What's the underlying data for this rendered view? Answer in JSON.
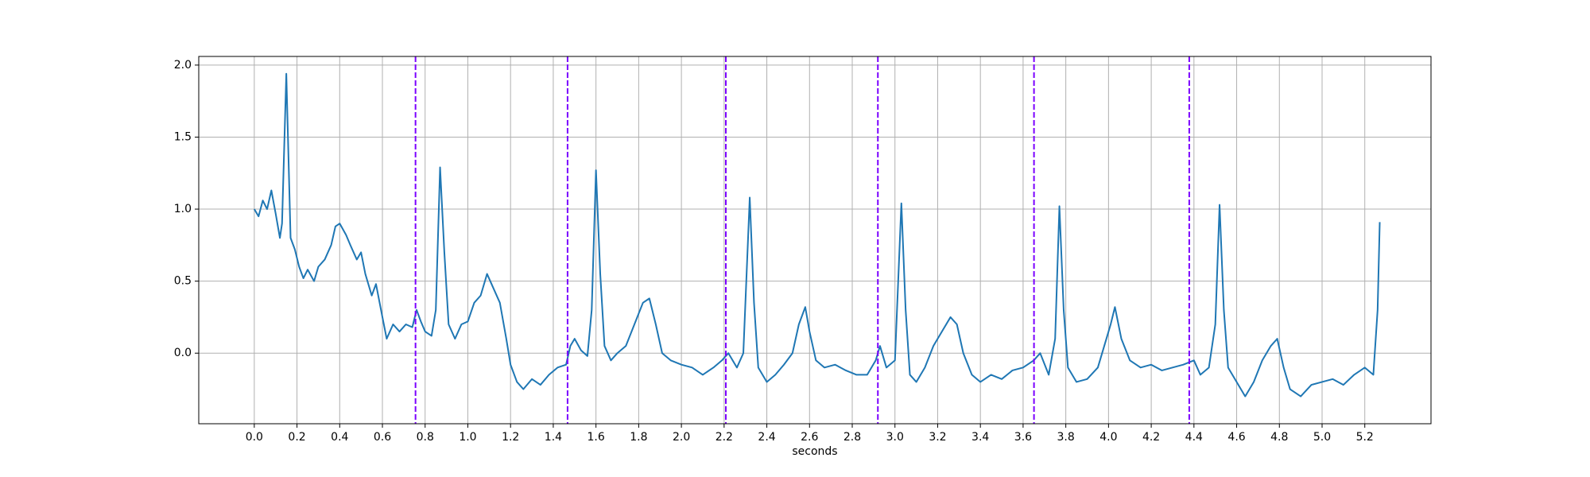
{
  "chart_data": {
    "type": "line",
    "xlabel": "seconds",
    "x": [
      0.0,
      0.02,
      0.04,
      0.06,
      0.08,
      0.1,
      0.12,
      0.13,
      0.15,
      0.17,
      0.19,
      0.21,
      0.23,
      0.25,
      0.28,
      0.3,
      0.33,
      0.36,
      0.38,
      0.4,
      0.43,
      0.45,
      0.48,
      0.5,
      0.52,
      0.55,
      0.57,
      0.6,
      0.62,
      0.65,
      0.68,
      0.71,
      0.74,
      0.76,
      0.78,
      0.8,
      0.83,
      0.85,
      0.87,
      0.89,
      0.91,
      0.94,
      0.97,
      1.0,
      1.03,
      1.06,
      1.09,
      1.12,
      1.15,
      1.18,
      1.2,
      1.23,
      1.26,
      1.3,
      1.34,
      1.38,
      1.42,
      1.46,
      1.48,
      1.5,
      1.53,
      1.56,
      1.58,
      1.6,
      1.62,
      1.64,
      1.67,
      1.7,
      1.74,
      1.78,
      1.82,
      1.85,
      1.88,
      1.91,
      1.95,
      2.0,
      2.05,
      2.1,
      2.15,
      2.19,
      2.22,
      2.26,
      2.29,
      2.32,
      2.34,
      2.36,
      2.4,
      2.44,
      2.48,
      2.52,
      2.55,
      2.58,
      2.6,
      2.63,
      2.67,
      2.72,
      2.77,
      2.82,
      2.87,
      2.91,
      2.93,
      2.96,
      3.0,
      3.03,
      3.05,
      3.07,
      3.1,
      3.14,
      3.18,
      3.22,
      3.26,
      3.29,
      3.32,
      3.36,
      3.4,
      3.45,
      3.5,
      3.55,
      3.6,
      3.65,
      3.68,
      3.72,
      3.75,
      3.77,
      3.79,
      3.81,
      3.85,
      3.9,
      3.95,
      3.98,
      4.01,
      4.03,
      4.06,
      4.1,
      4.15,
      4.2,
      4.25,
      4.3,
      4.35,
      4.4,
      4.43,
      4.47,
      4.5,
      4.52,
      4.54,
      4.56,
      4.6,
      4.64,
      4.68,
      4.72,
      4.76,
      4.79,
      4.82,
      4.85,
      4.9,
      4.95,
      5.0,
      5.05,
      5.1,
      5.15,
      5.2,
      5.24,
      5.26,
      5.27
    ],
    "series": [
      {
        "color": "#1f77b4",
        "values": [
          1.0,
          0.95,
          1.06,
          1.0,
          1.13,
          0.97,
          0.8,
          0.9,
          1.94,
          0.8,
          0.72,
          0.6,
          0.52,
          0.58,
          0.5,
          0.6,
          0.65,
          0.75,
          0.88,
          0.9,
          0.82,
          0.75,
          0.65,
          0.7,
          0.55,
          0.4,
          0.48,
          0.25,
          0.1,
          0.2,
          0.15,
          0.2,
          0.18,
          0.3,
          0.22,
          0.15,
          0.12,
          0.3,
          1.29,
          0.7,
          0.2,
          0.1,
          0.2,
          0.22,
          0.35,
          0.4,
          0.55,
          0.45,
          0.35,
          0.1,
          -0.08,
          -0.2,
          -0.25,
          -0.18,
          -0.22,
          -0.15,
          -0.1,
          -0.08,
          0.05,
          0.1,
          0.02,
          -0.02,
          0.3,
          1.27,
          0.55,
          0.05,
          -0.05,
          0.0,
          0.05,
          0.2,
          0.35,
          0.38,
          0.2,
          0.0,
          -0.05,
          -0.08,
          -0.1,
          -0.15,
          -0.1,
          -0.05,
          0.0,
          -0.1,
          0.0,
          1.08,
          0.35,
          -0.1,
          -0.2,
          -0.15,
          -0.08,
          0.0,
          0.2,
          0.32,
          0.15,
          -0.05,
          -0.1,
          -0.08,
          -0.12,
          -0.15,
          -0.15,
          -0.05,
          0.05,
          -0.1,
          -0.05,
          1.04,
          0.3,
          -0.15,
          -0.2,
          -0.1,
          0.05,
          0.15,
          0.25,
          0.2,
          0.0,
          -0.15,
          -0.2,
          -0.15,
          -0.18,
          -0.12,
          -0.1,
          -0.05,
          0.0,
          -0.15,
          0.1,
          1.02,
          0.3,
          -0.1,
          -0.2,
          -0.18,
          -0.1,
          0.05,
          0.2,
          0.32,
          0.1,
          -0.05,
          -0.1,
          -0.08,
          -0.12,
          -0.1,
          -0.08,
          -0.05,
          -0.15,
          -0.1,
          0.2,
          1.03,
          0.3,
          -0.1,
          -0.2,
          -0.3,
          -0.2,
          -0.05,
          0.05,
          0.1,
          -0.1,
          -0.25,
          -0.3,
          -0.22,
          -0.2,
          -0.18,
          -0.22,
          -0.15,
          -0.1,
          -0.15,
          0.3,
          0.91
        ]
      }
    ],
    "vlines": [
      0.755,
      1.467,
      2.208,
      2.92,
      3.651,
      4.378
    ],
    "vline_color": "#7b00ff",
    "xlim": [
      -0.26,
      5.51
    ],
    "ylim": [
      -0.49,
      2.06
    ],
    "xticks": [
      {
        "value": 0,
        "label": "0.0"
      },
      {
        "value": 0.2,
        "label": "0.2"
      },
      {
        "value": 0.4,
        "label": "0.4"
      },
      {
        "value": 0.6,
        "label": "0.6"
      },
      {
        "value": 0.8,
        "label": "0.8"
      },
      {
        "value": 1,
        "label": "1.0"
      },
      {
        "value": 1.2,
        "label": "1.2"
      },
      {
        "value": 1.4,
        "label": "1.4"
      },
      {
        "value": 1.6,
        "label": "1.6"
      },
      {
        "value": 1.8,
        "label": "1.8"
      },
      {
        "value": 2,
        "label": "2.0"
      },
      {
        "value": 2.2,
        "label": "2.2"
      },
      {
        "value": 2.4,
        "label": "2.4"
      },
      {
        "value": 2.6,
        "label": "2.6"
      },
      {
        "value": 2.8,
        "label": "2.8"
      },
      {
        "value": 3,
        "label": "3.0"
      },
      {
        "value": 3.2,
        "label": "3.2"
      },
      {
        "value": 3.4,
        "label": "3.4"
      },
      {
        "value": 3.6,
        "label": "3.6"
      },
      {
        "value": 3.8,
        "label": "3.8"
      },
      {
        "value": 4,
        "label": "4.0"
      },
      {
        "value": 4.2,
        "label": "4.2"
      },
      {
        "value": 4.4,
        "label": "4.4"
      },
      {
        "value": 4.6,
        "label": "4.6"
      },
      {
        "value": 4.8,
        "label": "4.8"
      },
      {
        "value": 5,
        "label": "5.0"
      },
      {
        "value": 5.2,
        "label": "5.2"
      }
    ],
    "yticks": [
      {
        "value": 0,
        "label": "0.0"
      },
      {
        "value": 0.5,
        "label": "0.5"
      },
      {
        "value": 1,
        "label": "1.0"
      },
      {
        "value": 1.5,
        "label": "1.5"
      },
      {
        "value": 2,
        "label": "2.0"
      }
    ],
    "grid": true
  }
}
